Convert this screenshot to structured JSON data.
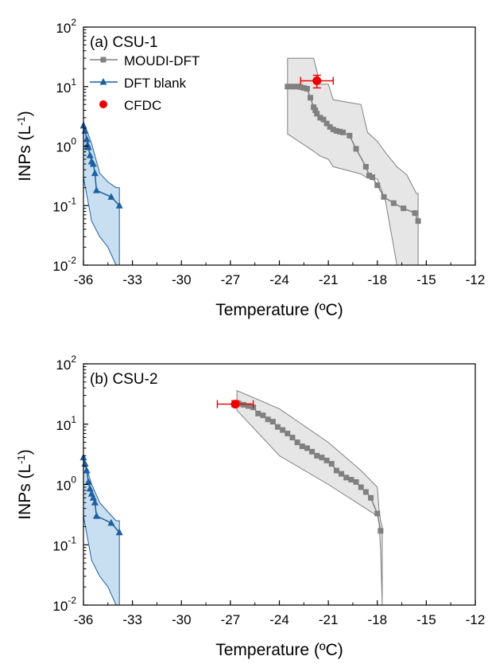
{
  "chart_data": [
    {
      "type": "line",
      "panel_label": "(a) CSU-1",
      "xlabel": "Temperature (ºC)",
      "ylabel": "INPs (L",
      "ylabel_sup": "-1",
      "ylabel_close": ")",
      "xlim": [
        -36,
        -12
      ],
      "ylim": [
        0.01,
        100
      ],
      "yscale": "log",
      "xticks": [
        -36,
        -33,
        -30,
        -27,
        -24,
        -21,
        -18,
        -15,
        -12
      ],
      "yticks": [
        {
          "value": 100,
          "base": "10",
          "exp": "2"
        },
        {
          "value": 10,
          "base": "10",
          "exp": "1"
        },
        {
          "value": 1,
          "base": "10",
          "exp": "0"
        },
        {
          "value": 0.1,
          "base": "10",
          "exp": "-1"
        },
        {
          "value": 0.01,
          "base": "10",
          "exp": "-2"
        }
      ],
      "legend": {
        "position": "top-left",
        "entries": [
          {
            "label": "MOUDI-DFT",
            "series": "moudi"
          },
          {
            "label": "DFT blank",
            "series": "blank"
          },
          {
            "label": "CFDC",
            "series": "cfdc"
          }
        ]
      },
      "colors": {
        "moudi": "#808080",
        "moudi_band": "#e6e6e6",
        "blank": "#1f5fa0",
        "blank_band": "#c7dff0",
        "cfdc": "#ee0000"
      },
      "series": [
        {
          "name": "MOUDI-DFT",
          "x": [
            -23.5,
            -23.3,
            -23.1,
            -22.9,
            -22.7,
            -22.5,
            -22.3,
            -22.1,
            -21.9,
            -21.8,
            -21.7,
            -21.5,
            -21.3,
            -21.1,
            -20.9,
            -20.7,
            -20.5,
            -20.3,
            -20.1,
            -19.7,
            -19.3,
            -18.7,
            -18.5,
            -18.3,
            -18.0,
            -17.6,
            -17.0,
            -16.4,
            -15.7,
            -15.5
          ],
          "y": [
            10,
            10,
            10,
            10,
            9.8,
            9.5,
            9.2,
            6.5,
            4.5,
            4,
            3.5,
            3,
            2.8,
            2.4,
            2.1,
            1.9,
            1.8,
            1.75,
            1.7,
            1.5,
            0.9,
            0.45,
            0.32,
            0.3,
            0.22,
            0.14,
            0.11,
            0.09,
            0.075,
            0.055
          ]
        },
        {
          "name": "DFT blank",
          "x": [
            -36,
            -35.9,
            -35.8,
            -35.75,
            -35.7,
            -35.6,
            -35.5,
            -35.4,
            -35.3,
            -35.2,
            -34.3,
            -33.8
          ],
          "y": [
            2.2,
            1.8,
            1.3,
            1.05,
            0.95,
            0.7,
            0.55,
            0.5,
            0.35,
            0.18,
            0.14,
            0.1
          ]
        },
        {
          "name": "CFDC",
          "x": [
            -21.7
          ],
          "y": [
            12.5
          ],
          "xerr": 1.0,
          "yerr_low": 9.5,
          "yerr_high": 15.5
        }
      ],
      "bands": [
        {
          "series": "MOUDI-DFT",
          "x": [
            -23.5,
            -21.9,
            -21.5,
            -21.0,
            -20.7,
            -19.0,
            -18.6,
            -18.0,
            -17.5,
            -16.8,
            -16.2,
            -15.6,
            -15.5
          ],
          "upper": [
            30,
            30,
            11,
            11,
            6,
            5,
            1.7,
            1.2,
            0.78,
            0.45,
            0.33,
            0.16,
            0.16
          ],
          "lower": [
            1.6,
            0.82,
            0.68,
            0.6,
            0.45,
            0.34,
            0.29,
            0.28,
            0.12,
            0.01,
            0.01,
            0.01,
            0.01
          ]
        },
        {
          "series": "DFT blank",
          "x": [
            -36,
            -35.5,
            -35.0,
            -34.5,
            -34.0,
            -33.8
          ],
          "upper": [
            2.6,
            1.1,
            0.35,
            0.25,
            0.2,
            0.2
          ],
          "lower": [
            0.3,
            0.055,
            0.03,
            0.02,
            0.01,
            0.01
          ]
        }
      ]
    },
    {
      "type": "line",
      "panel_label": "(b) CSU-2",
      "xlabel": "Temperature (ºC)",
      "ylabel": "INPs (L",
      "ylabel_sup": "-1",
      "ylabel_close": ")",
      "xlim": [
        -36,
        -12
      ],
      "ylim": [
        0.01,
        100
      ],
      "yscale": "log",
      "xticks": [
        -36,
        -33,
        -30,
        -27,
        -24,
        -21,
        -18,
        -15,
        -12
      ],
      "yticks": [
        {
          "value": 100,
          "base": "10",
          "exp": "2"
        },
        {
          "value": 10,
          "base": "10",
          "exp": "1"
        },
        {
          "value": 1,
          "base": "10",
          "exp": "0"
        },
        {
          "value": 0.1,
          "base": "10",
          "exp": "-1"
        },
        {
          "value": 0.01,
          "base": "10",
          "exp": "-2"
        }
      ],
      "colors": {
        "moudi": "#808080",
        "moudi_band": "#e6e6e6",
        "blank": "#1f5fa0",
        "blank_band": "#c7dff0",
        "cfdc": "#ee0000"
      },
      "series": [
        {
          "name": "MOUDI-DFT",
          "x": [
            -26.5,
            -26.2,
            -25.9,
            -25.6,
            -25.3,
            -25.0,
            -24.7,
            -24.4,
            -24.1,
            -23.8,
            -23.5,
            -23.2,
            -22.9,
            -22.6,
            -22.3,
            -22.0,
            -21.7,
            -21.4,
            -21.1,
            -20.8,
            -20.5,
            -20.2,
            -19.9,
            -19.6,
            -19.3,
            -19.0,
            -18.7,
            -18.4,
            -18.0,
            -17.8
          ],
          "y": [
            22,
            21,
            20,
            19,
            15,
            14,
            12,
            11,
            9,
            8,
            7,
            6,
            5,
            4.3,
            4,
            3.5,
            3,
            2.8,
            2.5,
            2.2,
            1.7,
            1.5,
            1.3,
            1.2,
            1.1,
            0.9,
            0.75,
            0.6,
            0.33,
            0.17
          ]
        },
        {
          "name": "DFT blank",
          "x": [
            -36,
            -35.9,
            -35.8,
            -35.7,
            -35.6,
            -35.5,
            -35.4,
            -35.3,
            -35.2,
            -34.3,
            -33.8
          ],
          "y": [
            2.8,
            2.2,
            1.7,
            1.1,
            0.85,
            0.7,
            0.6,
            0.5,
            0.3,
            0.23,
            0.16
          ]
        },
        {
          "name": "CFDC",
          "x": [
            -26.7
          ],
          "y": [
            21.5
          ],
          "xerr": 1.1,
          "yerr_low": 19.5,
          "yerr_high": 24.5
        }
      ],
      "bands": [
        {
          "series": "MOUDI-DFT",
          "x": [
            -26.6,
            -24.0,
            -21.0,
            -19.0,
            -18.0,
            -17.9,
            -17.8,
            -17.7
          ],
          "upper": [
            36,
            18,
            5,
            1.7,
            0.9,
            0.4,
            0.25,
            0.2
          ],
          "lower": [
            17,
            3,
            1.0,
            0.45,
            0.3,
            0.25,
            0.08,
            0.01
          ]
        },
        {
          "series": "DFT blank",
          "x": [
            -36,
            -35.5,
            -35.0,
            -34.5,
            -34.0,
            -33.8
          ],
          "upper": [
            2.8,
            1.0,
            0.5,
            0.35,
            0.25,
            0.25
          ],
          "lower": [
            0.3,
            0.055,
            0.03,
            0.02,
            0.01,
            0.01
          ]
        }
      ]
    }
  ]
}
